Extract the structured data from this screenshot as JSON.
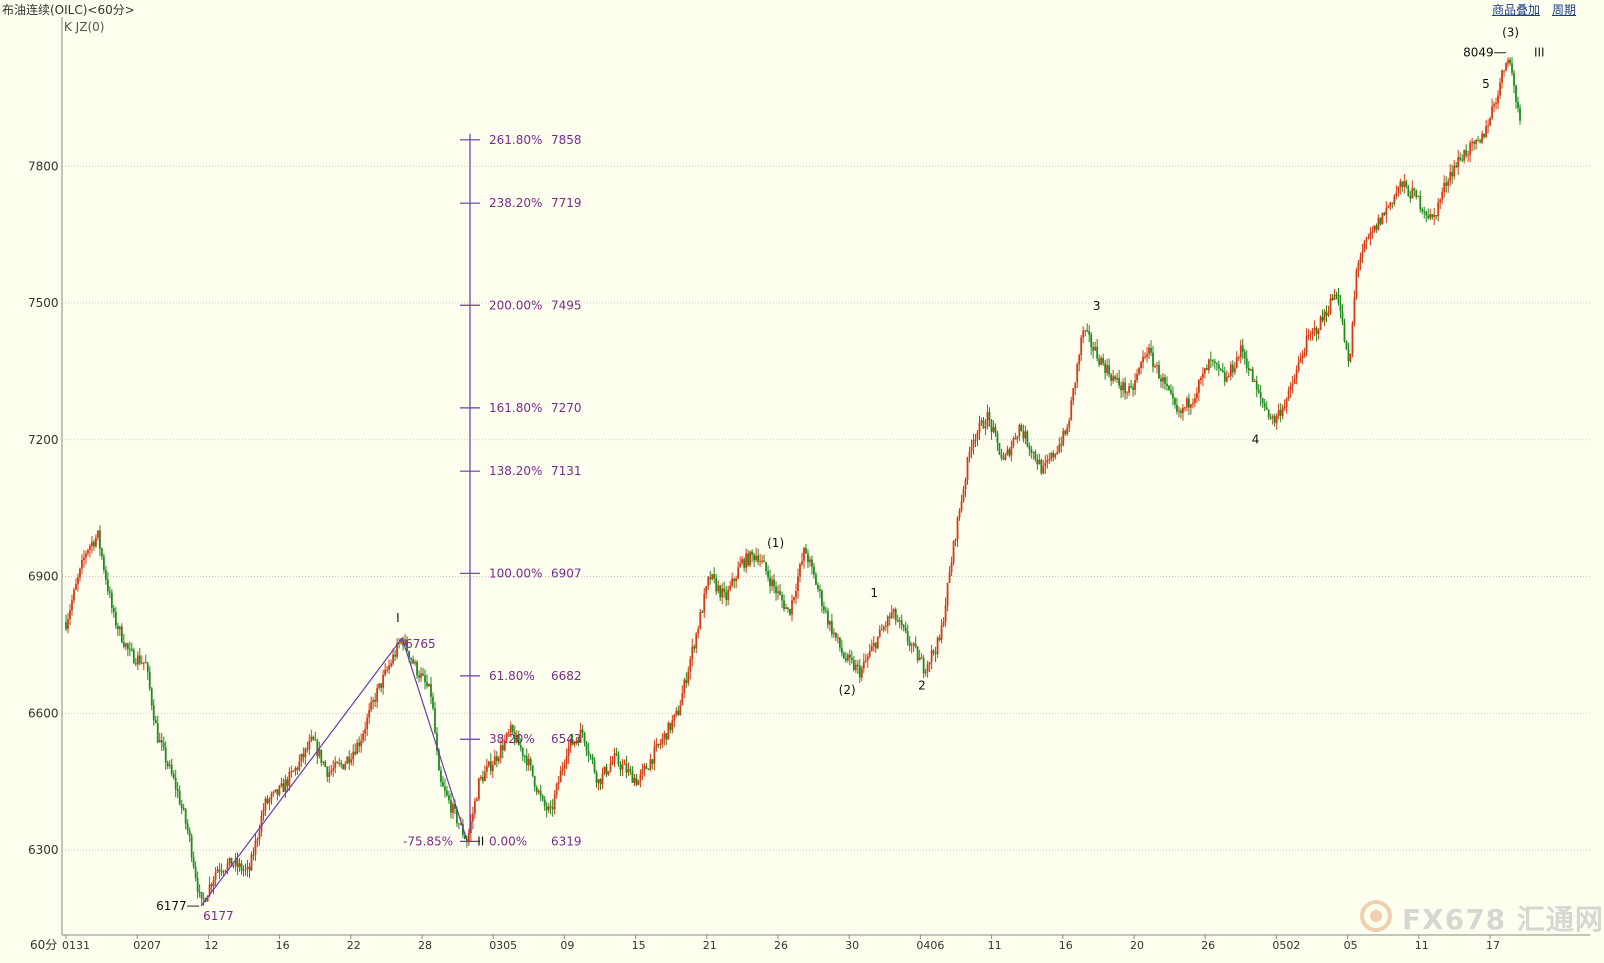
{
  "header": {
    "title": "布油连续(OILC)<60分>",
    "overlay_link": "商品叠加",
    "period_link": "周期",
    "indicator_label": "K  JZ(0)"
  },
  "colors": {
    "background": "#fffff0",
    "up_candle": "#d43a14",
    "down_candle": "#1f8a1f",
    "fib_line": "#6a3aa8",
    "fib_text": "#7a2c8c",
    "grid": "#c8c8c8",
    "axis_text": "#333333"
  },
  "chart_data": {
    "type": "candlestick",
    "instrument": "布油连续(OILC)",
    "timeframe": "60分",
    "ylim": [
      6170,
      8100
    ],
    "y_ticks": [
      6300,
      6600,
      6900,
      7200,
      7500,
      7800
    ],
    "y_axis_unit_label": "60分",
    "x_tick_labels": [
      "0131",
      "0207",
      "12",
      "16",
      "22",
      "28",
      "0305",
      "09",
      "15",
      "21",
      "26",
      "30",
      "0406",
      "11",
      "16",
      "20",
      "26",
      "0502",
      "05",
      "11",
      "17"
    ],
    "price_path_anchors": [
      [
        0,
        6800
      ],
      [
        2.6,
        6960
      ],
      [
        4,
        6990
      ],
      [
        6,
        6810
      ],
      [
        8,
        6730
      ],
      [
        10,
        6710
      ],
      [
        11.5,
        6550
      ],
      [
        14,
        6430
      ],
      [
        15.5,
        6330
      ],
      [
        17,
        6177
      ],
      [
        19,
        6260
      ],
      [
        21,
        6270
      ],
      [
        23,
        6250
      ],
      [
        25,
        6400
      ],
      [
        27,
        6430
      ],
      [
        29,
        6480
      ],
      [
        31,
        6540
      ],
      [
        33,
        6470
      ],
      [
        35,
        6490
      ],
      [
        37,
        6540
      ],
      [
        39,
        6640
      ],
      [
        42.3,
        6765
      ],
      [
        44,
        6700
      ],
      [
        46,
        6640
      ],
      [
        47,
        6450
      ],
      [
        50.5,
        6319
      ],
      [
        52,
        6450
      ],
      [
        54,
        6500
      ],
      [
        56,
        6560
      ],
      [
        58,
        6500
      ],
      [
        60,
        6400
      ],
      [
        61,
        6380
      ],
      [
        63,
        6520
      ],
      [
        65,
        6560
      ],
      [
        67,
        6450
      ],
      [
        69,
        6500
      ],
      [
        72,
        6450
      ],
      [
        75,
        6540
      ],
      [
        77,
        6600
      ],
      [
        79,
        6750
      ],
      [
        81,
        6900
      ],
      [
        83,
        6850
      ],
      [
        85,
        6930
      ],
      [
        87,
        6950
      ],
      [
        89,
        6880
      ],
      [
        91,
        6820
      ],
      [
        93,
        6960
      ],
      [
        96,
        6800
      ],
      [
        98,
        6720
      ],
      [
        100,
        6690
      ],
      [
        102,
        6760
      ],
      [
        104,
        6820
      ],
      [
        106,
        6760
      ],
      [
        108,
        6700
      ],
      [
        110,
        6760
      ],
      [
        112,
        7000
      ],
      [
        114,
        7200
      ],
      [
        116,
        7250
      ],
      [
        118,
        7150
      ],
      [
        120,
        7230
      ],
      [
        123,
        7130
      ],
      [
        126,
        7220
      ],
      [
        128,
        7440
      ],
      [
        130,
        7380
      ],
      [
        132,
        7330
      ],
      [
        134,
        7300
      ],
      [
        136,
        7400
      ],
      [
        138,
        7330
      ],
      [
        140,
        7250
      ],
      [
        142,
        7300
      ],
      [
        144,
        7370
      ],
      [
        146,
        7330
      ],
      [
        148,
        7400
      ],
      [
        150,
        7300
      ],
      [
        152,
        7240
      ],
      [
        154,
        7300
      ],
      [
        156,
        7410
      ],
      [
        158,
        7460
      ],
      [
        160,
        7530
      ],
      [
        161.5,
        7350
      ],
      [
        162.5,
        7590
      ],
      [
        164,
        7640
      ],
      [
        166,
        7700
      ],
      [
        168,
        7760
      ],
      [
        170,
        7730
      ],
      [
        172,
        7680
      ],
      [
        174,
        7780
      ],
      [
        176,
        7830
      ],
      [
        178,
        7850
      ],
      [
        180,
        7950
      ],
      [
        181.5,
        8049
      ],
      [
        183,
        7900
      ]
    ],
    "wave_labels": [
      {
        "text": "I",
        "x": 42.3,
        "y": 6765,
        "pos": "above"
      },
      {
        "text": "II",
        "x": 50.5,
        "y": 6319,
        "pos": "right"
      },
      {
        "text": "(1)",
        "x": 89,
        "y": 6930,
        "pos": "above"
      },
      {
        "text": "(2)",
        "x": 98,
        "y": 6690,
        "pos": "below"
      },
      {
        "text": "1",
        "x": 102,
        "y": 6820,
        "pos": "above"
      },
      {
        "text": "2",
        "x": 108,
        "y": 6700,
        "pos": "below"
      },
      {
        "text": "3",
        "x": 130,
        "y": 7450,
        "pos": "above"
      },
      {
        "text": "4",
        "x": 150,
        "y": 7240,
        "pos": "below"
      },
      {
        "text": "5",
        "x": 181,
        "y": 7980,
        "pos": "left"
      },
      {
        "text": "(3)",
        "x": 181.5,
        "y": 8049,
        "pos": "above"
      },
      {
        "text": "III",
        "x": 183.5,
        "y": 8049,
        "pos": "right"
      }
    ],
    "price_markers": [
      {
        "text": "6177",
        "x": 17,
        "y": 6177
      },
      {
        "text": "8049",
        "x": 181.5,
        "y": 8049
      }
    ],
    "point_labels": [
      {
        "text": "6177",
        "x": 17,
        "y": 6177,
        "pos": "below-right"
      },
      {
        "text": "6765",
        "x": 42.3,
        "y": 6765,
        "pos": "right"
      }
    ],
    "wave_lines": [
      [
        [
          17,
          6177
        ],
        [
          42.3,
          6765
        ]
      ],
      [
        [
          42.3,
          6765
        ],
        [
          50.5,
          6319
        ]
      ]
    ],
    "fibonacci_extension": {
      "x": 50.5,
      "ratio_note": "-75.85%",
      "levels": [
        {
          "ratio": "0.00%",
          "price": "6319",
          "value": 6319
        },
        {
          "ratio": "38.20%",
          "price": "6543",
          "value": 6543
        },
        {
          "ratio": "61.80%",
          "price": "6682",
          "value": 6682
        },
        {
          "ratio": "100.00%",
          "price": "6907",
          "value": 6907
        },
        {
          "ratio": "138.20%",
          "price": "7131",
          "value": 7131
        },
        {
          "ratio": "161.80%",
          "price": "7270",
          "value": 7270
        },
        {
          "ratio": "200.00%",
          "price": "7495",
          "value": 7495
        },
        {
          "ratio": "238.20%",
          "price": "7719",
          "value": 7719
        },
        {
          "ratio": "261.80%",
          "price": "7858",
          "value": 7858
        }
      ]
    }
  },
  "watermark": {
    "text": "FX678 汇通网"
  }
}
